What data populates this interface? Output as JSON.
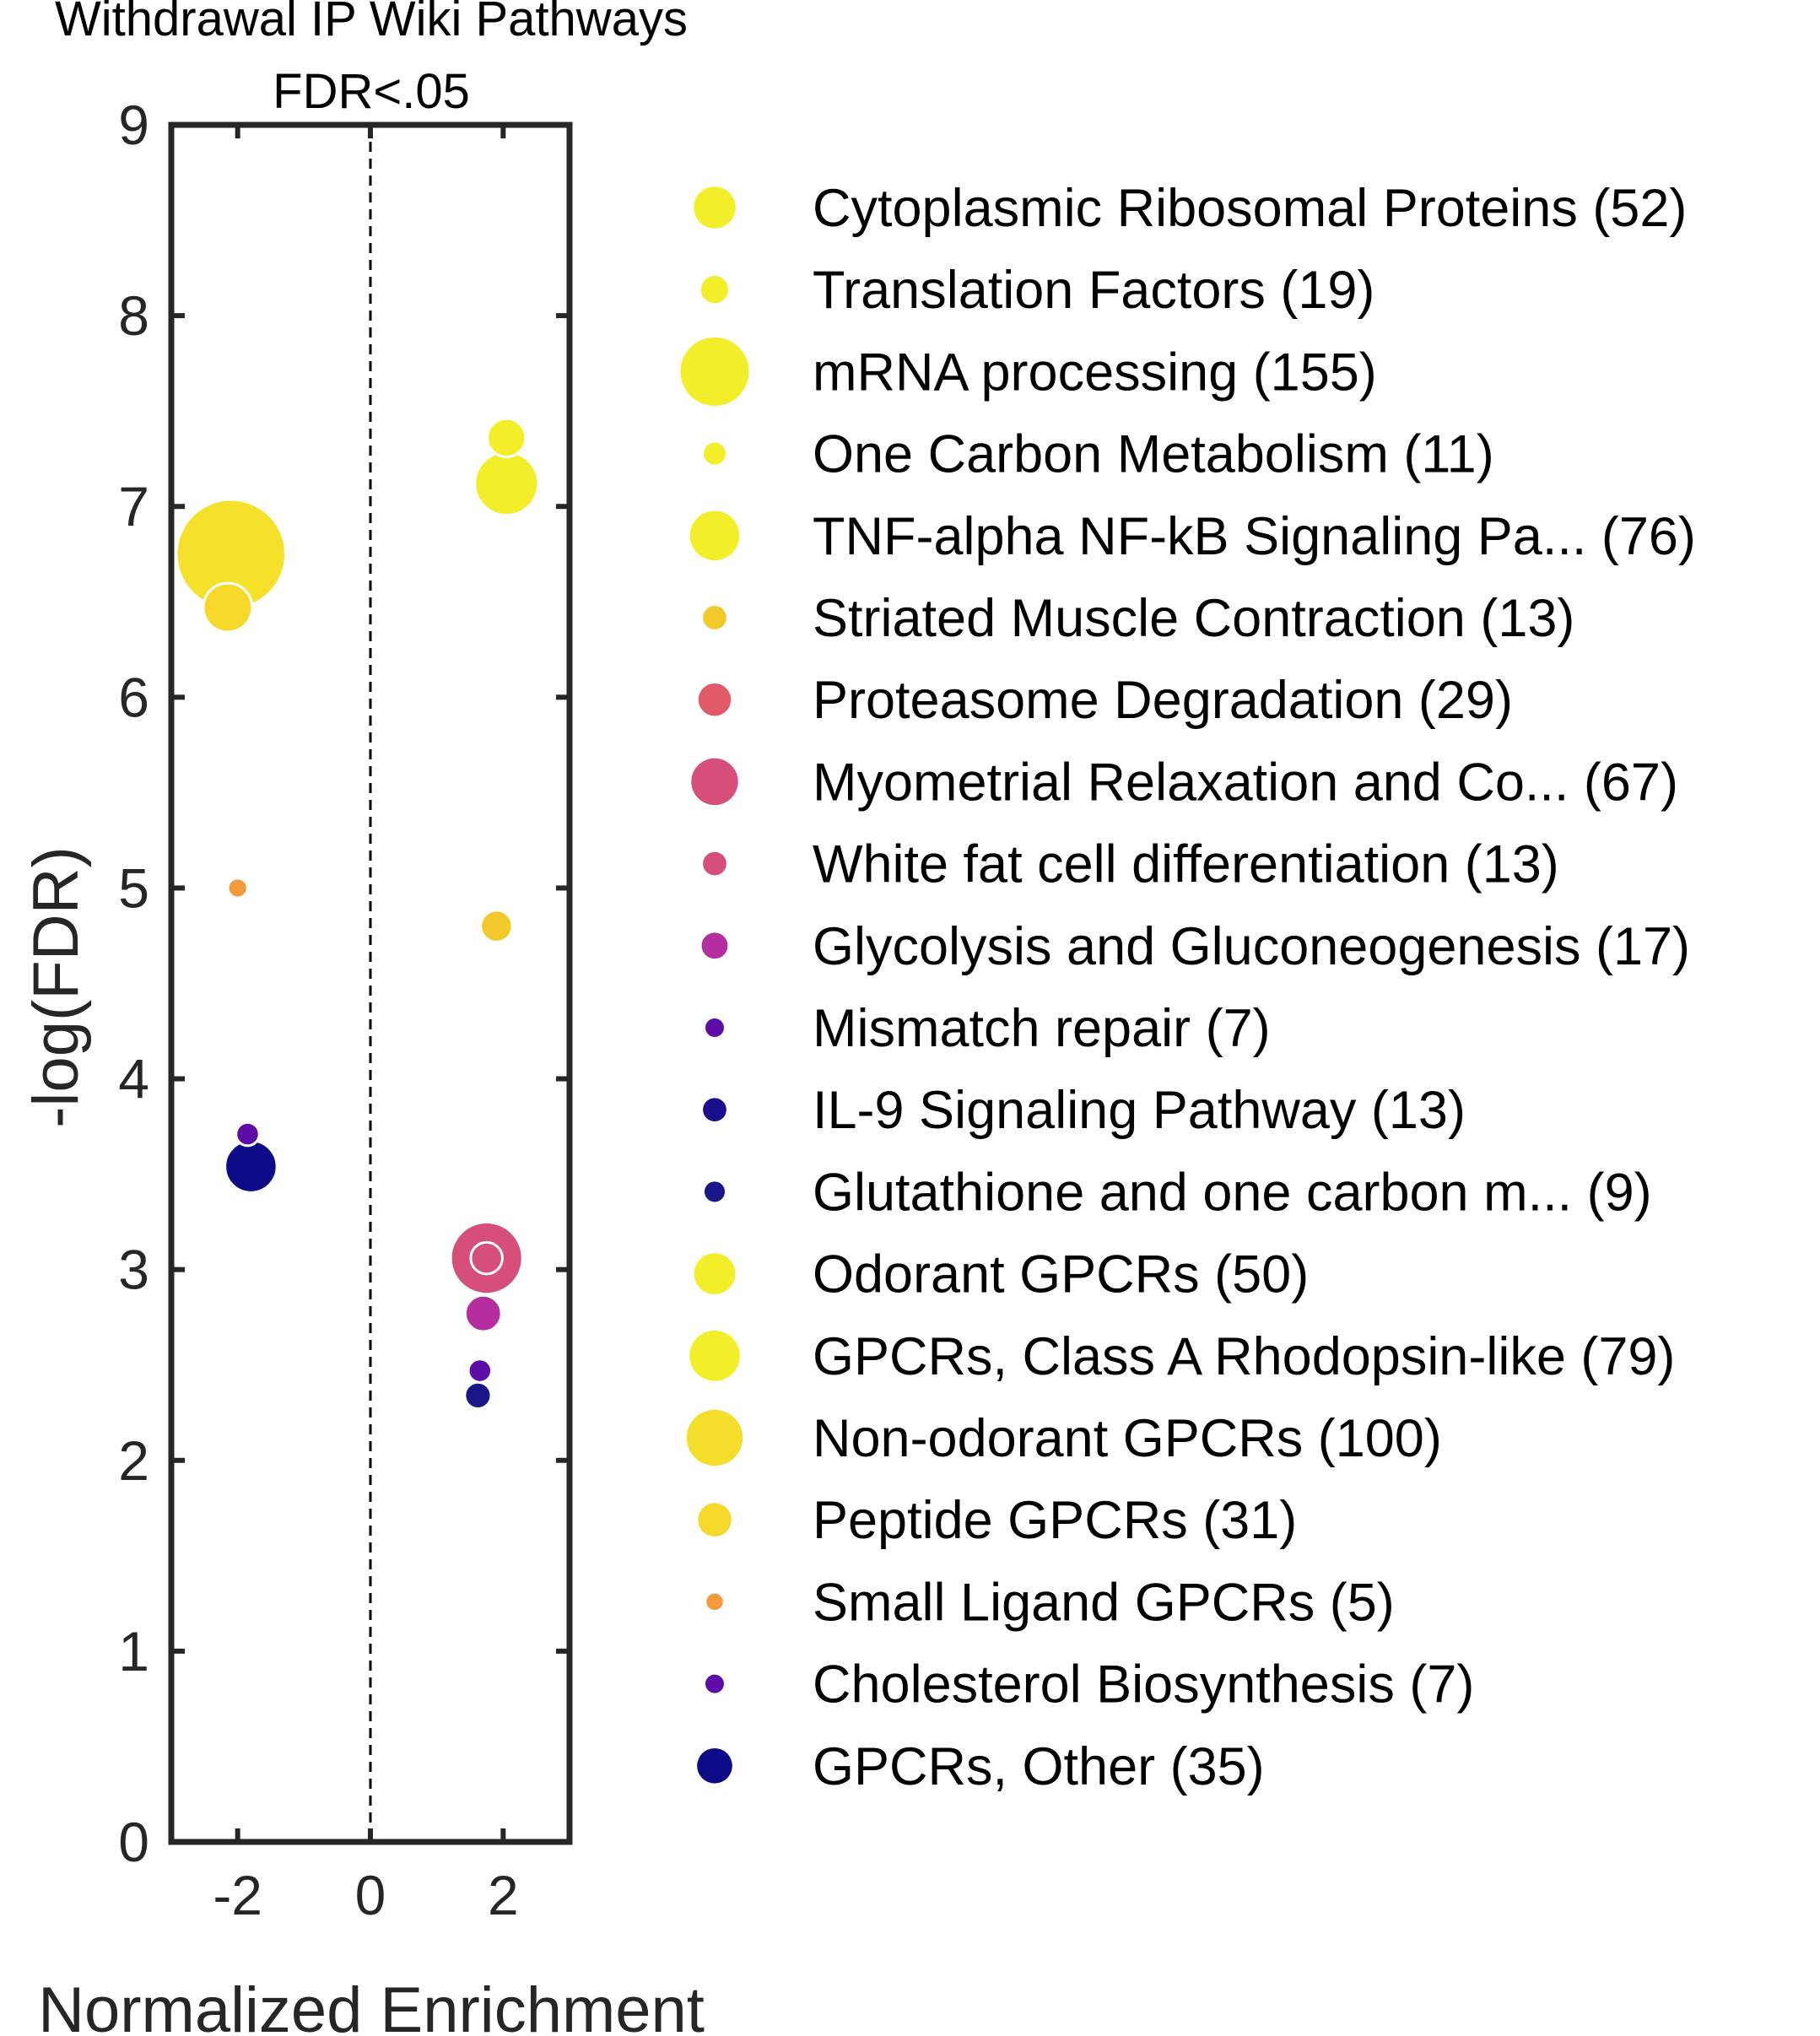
{
  "chart_data": {
    "type": "scatter",
    "title": "Withdrawal IP Wiki Pathways",
    "subtitle": "FDR<.05",
    "xlabel": "Normalized Enrichment",
    "ylabel": "-log(FDR)",
    "xlim": [
      -3.0,
      3.0
    ],
    "ylim": [
      0,
      9
    ],
    "xticks": [
      -2,
      0,
      2
    ],
    "xtick_labels": [
      "-2",
      "0",
      "2"
    ],
    "yticks": [
      0,
      1,
      2,
      3,
      4,
      5,
      6,
      7,
      8,
      9
    ],
    "ytick_labels": [
      "0",
      "1",
      "2",
      "3",
      "4",
      "5",
      "6",
      "7",
      "8",
      "9"
    ],
    "reference_line": {
      "x": 0,
      "style": "dashed"
    },
    "grid": false,
    "legend_position": "right",
    "point_size_encodes": "gene set size",
    "points": [
      {
        "name": "Cytoplasmic Ribosomal Proteins (52)",
        "size": 52,
        "color": "#f2ee2a",
        "x": 2.05,
        "y": 7.12
      },
      {
        "name": "Translation Factors (19)",
        "size": 19,
        "color": "#f2ee2a",
        "x": 2.05,
        "y": 7.36
      },
      {
        "name": "mRNA processing (155)",
        "size": 155,
        "color": "#f5e02a",
        "x": -2.1,
        "y": 6.75
      },
      {
        "name": "One Carbon Metabolism (11)",
        "size": 11,
        "color": "#f2ee2a",
        "x": null,
        "y": null
      },
      {
        "name": "TNF-alpha NF-kB Signaling Pa... (76)",
        "size": 76,
        "color": "#f2ee2a",
        "x": null,
        "y": null
      },
      {
        "name": "Striated Muscle Contraction (13)",
        "size": 13,
        "color": "#f2c92a",
        "x": 1.9,
        "y": 4.8
      },
      {
        "name": "Proteasome Degradation (29)",
        "size": 29,
        "color": "#e05a6a",
        "x": null,
        "y": null
      },
      {
        "name": "Myometrial Relaxation and Co... (67)",
        "size": 67,
        "color": "#d64f78",
        "x": 1.75,
        "y": 3.06
      },
      {
        "name": "White fat cell differentiation (13)",
        "size": 13,
        "color": "#d64f78",
        "x": 1.75,
        "y": 3.06
      },
      {
        "name": "Glycolysis and Gluconeogenesis (17)",
        "size": 17,
        "color": "#b42ea0",
        "x": 1.7,
        "y": 2.77
      },
      {
        "name": "Mismatch repair (7)",
        "size": 7,
        "color": "#5d0ca6",
        "x": 1.65,
        "y": 2.47
      },
      {
        "name": "IL-9 Signaling Pathway (13)",
        "size": 13,
        "color": "#1a0d8e",
        "x": null,
        "y": null
      },
      {
        "name": "Glutathione and one carbon m... (9)",
        "size": 9,
        "color": "#1a168a",
        "x": 1.62,
        "y": 2.34
      },
      {
        "name": "Odorant GPCRs (50)",
        "size": 50,
        "color": "#f2ee2a",
        "x": null,
        "y": null
      },
      {
        "name": "GPCRs, Class A Rhodopsin-like (79)",
        "size": 79,
        "color": "#f2ee2a",
        "x": null,
        "y": null
      },
      {
        "name": "Non-odorant GPCRs (100)",
        "size": 100,
        "color": "#f5de2a",
        "x": null,
        "y": null
      },
      {
        "name": "Peptide GPCRs (31)",
        "size": 31,
        "color": "#f5d82a",
        "x": -2.15,
        "y": 6.47
      },
      {
        "name": "Small Ligand GPCRs (5)",
        "size": 5,
        "color": "#f49a3c",
        "x": -2.0,
        "y": 5.0
      },
      {
        "name": "Cholesterol Biosynthesis (7)",
        "size": 7,
        "color": "#5d0ca6",
        "x": -1.85,
        "y": 3.71
      },
      {
        "name": "GPCRs, Other (35)",
        "size": 35,
        "color": "#0d0a88",
        "x": -1.8,
        "y": 3.54
      }
    ]
  },
  "legend": {
    "items": [
      {
        "label": "Cytoplasmic Ribosomal Proteins (52)",
        "color": "#f2ee2a",
        "size": 52
      },
      {
        "label": "Translation Factors (19)",
        "color": "#f2ee2a",
        "size": 19
      },
      {
        "label": "mRNA processing (155)",
        "color": "#f2ee2a",
        "size": 155
      },
      {
        "label": "One Carbon Metabolism (11)",
        "color": "#f2ee2a",
        "size": 11
      },
      {
        "label": "TNF-alpha NF-kB Signaling Pa... (76)",
        "color": "#f2ee2a",
        "size": 76
      },
      {
        "label": "Striated Muscle Contraction (13)",
        "color": "#f2c92a",
        "size": 13
      },
      {
        "label": "Proteasome Degradation (29)",
        "color": "#e05a6a",
        "size": 29
      },
      {
        "label": "Myometrial Relaxation and Co... (67)",
        "color": "#d64f78",
        "size": 67
      },
      {
        "label": "White fat cell differentiation (13)",
        "color": "#d64f78",
        "size": 13
      },
      {
        "label": "Glycolysis and Gluconeogenesis (17)",
        "color": "#b42ea0",
        "size": 17
      },
      {
        "label": "Mismatch repair (7)",
        "color": "#5d0ca6",
        "size": 7
      },
      {
        "label": "IL-9 Signaling Pathway (13)",
        "color": "#1a0d8e",
        "size": 13
      },
      {
        "label": "Glutathione and one carbon m... (9)",
        "color": "#1a168a",
        "size": 9
      },
      {
        "label": "Odorant GPCRs (50)",
        "color": "#f2ee2a",
        "size": 50
      },
      {
        "label": "GPCRs, Class A Rhodopsin-like (79)",
        "color": "#f2ee2a",
        "size": 79
      },
      {
        "label": "Non-odorant GPCRs (100)",
        "color": "#f5de2a",
        "size": 100
      },
      {
        "label": "Peptide GPCRs (31)",
        "color": "#f5d82a",
        "size": 31
      },
      {
        "label": "Small Ligand GPCRs (5)",
        "color": "#f49a3c",
        "size": 5
      },
      {
        "label": "Cholesterol Biosynthesis (7)",
        "color": "#5d0ca6",
        "size": 7
      },
      {
        "label": "GPCRs, Other (35)",
        "color": "#0d0a88",
        "size": 35
      }
    ]
  },
  "colors": {
    "axis": "#262626",
    "point_outline": "#ffffff"
  }
}
